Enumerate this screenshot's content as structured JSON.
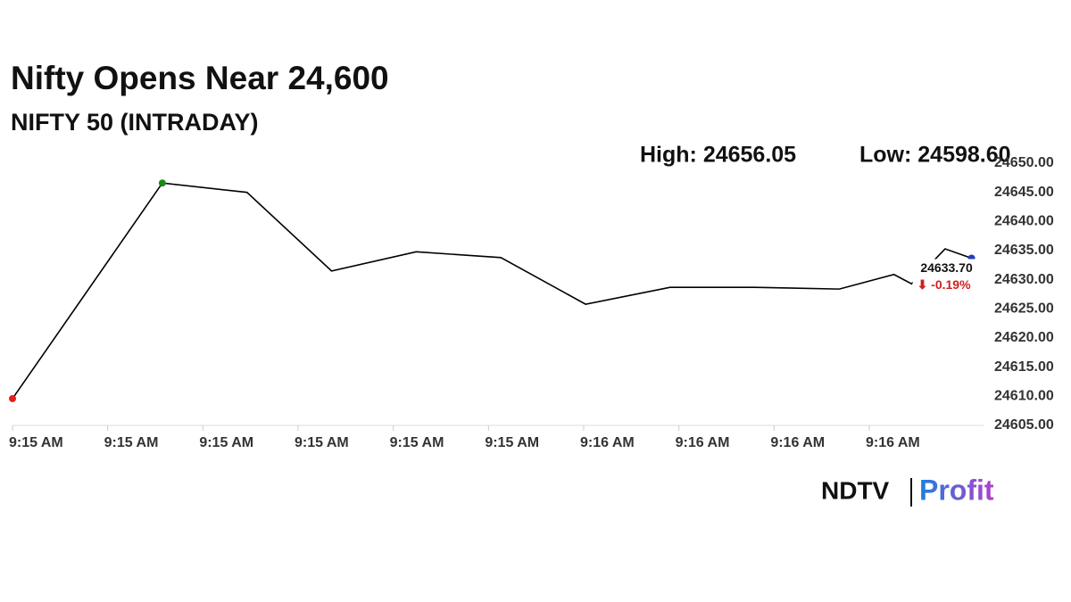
{
  "chart_data": {
    "type": "line",
    "title": "Nifty Opens Near 24,600",
    "subtitle": "NIFTY 50 (INTRADAY)",
    "high_label": "High: 24656.05",
    "low_label": "Low: 24598.60",
    "x": [
      0,
      1.574,
      2.463,
      3.352,
      4.241,
      5.13,
      6.02,
      6.907,
      7.796,
      8.685,
      9.259,
      9.444,
      9.796,
      10.074
    ],
    "series": [
      {
        "name": "NIFTY 50",
        "color": "#000000",
        "values": [
          24609.6,
          24646.6,
          24645.0,
          24631.5,
          24634.8,
          24633.8,
          24625.8,
          24628.7,
          24628.7,
          24628.4,
          24630.9,
          24629.3,
          24635.3,
          24633.7
        ]
      }
    ],
    "marker_colors": {
      "first": "#e3201b",
      "high": "#178a17",
      "last": "#1f3fbf"
    },
    "annotations": {
      "price": "24633.70",
      "change": "⬇ -0.19%"
    },
    "xlim": [
      0,
      10.2
    ],
    "xticks": [
      {
        "value": 0,
        "label": "9:15 AM"
      },
      {
        "value": 1,
        "label": "9:15 AM"
      },
      {
        "value": 2,
        "label": "9:15 AM"
      },
      {
        "value": 3,
        "label": "9:15 AM"
      },
      {
        "value": 4,
        "label": "9:15 AM"
      },
      {
        "value": 5,
        "label": "9:15 AM"
      },
      {
        "value": 6,
        "label": "9:16 AM"
      },
      {
        "value": 7,
        "label": "9:16 AM"
      },
      {
        "value": 8,
        "label": "9:16 AM"
      },
      {
        "value": 9,
        "label": "9:16 AM"
      }
    ],
    "ylim": [
      24605,
      24650
    ],
    "yticks": [
      {
        "value": 24605,
        "label": "24605.00"
      },
      {
        "value": 24610,
        "label": "24610.00"
      },
      {
        "value": 24615,
        "label": "24615.00"
      },
      {
        "value": 24620,
        "label": "24620.00"
      },
      {
        "value": 24625,
        "label": "24625.00"
      },
      {
        "value": 24630,
        "label": "24630.00"
      },
      {
        "value": 24635,
        "label": "24635.00"
      },
      {
        "value": 24640,
        "label": "24640.00"
      },
      {
        "value": 24645,
        "label": "24645.00"
      },
      {
        "value": 24650,
        "label": "24650.00"
      }
    ],
    "grid": false,
    "logo": {
      "brand": "NDTV",
      "product": "Profit"
    }
  }
}
